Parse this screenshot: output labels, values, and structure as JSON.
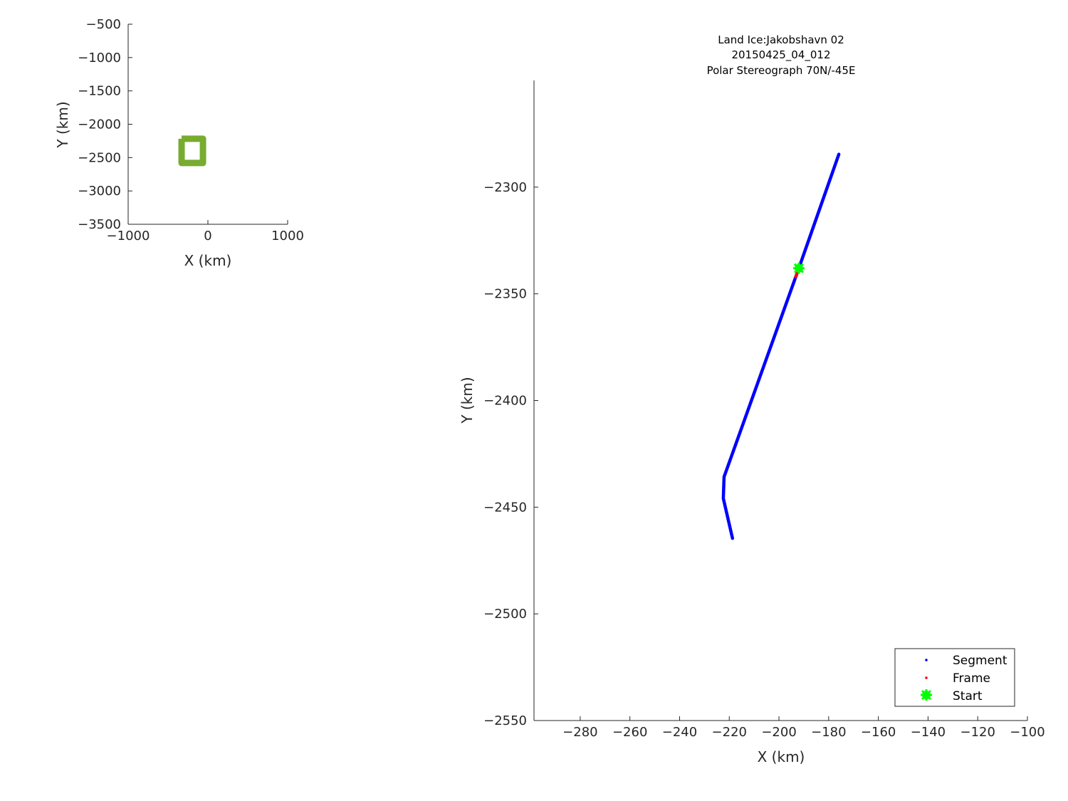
{
  "chart_data": [
    {
      "type": "scatter",
      "xlabel": "X (km)",
      "ylabel": "Y (km)",
      "xlim": [
        -1000,
        1000
      ],
      "ylim": [
        -3500,
        -500
      ],
      "xticks": [
        "-1000",
        "0",
        "1000"
      ],
      "yticks": [
        "-500",
        "-1000",
        "-1500",
        "-2000",
        "-2500",
        "-3000",
        "-3500"
      ],
      "xtick_values": [
        -1000,
        0,
        1000
      ],
      "ytick_values": [
        -500,
        -1000,
        -1500,
        -2000,
        -2500,
        -3000,
        -3500
      ],
      "grid": false,
      "series": [
        {
          "marker": "outlined box",
          "color": "#77AC30",
          "x": [
            -330,
            -62,
            -62,
            -330,
            -330
          ],
          "y": [
            -2218,
            -2218,
            -2581,
            -2581,
            -2218
          ]
        }
      ]
    },
    {
      "type": "line",
      "title": [
        "Land Ice:Jakobshavn 02",
        "20150425_04_012",
        "Polar Stereograph 70N/-45E"
      ],
      "xlabel": "X (km)",
      "ylabel": "Y (km)",
      "xlim": [
        -298.6,
        -100
      ],
      "ylim": [
        -2550,
        -2250
      ],
      "xticks": [
        "-280",
        "-260",
        "-240",
        "-220",
        "-200",
        "-180",
        "-160",
        "-140",
        "-120",
        "-100"
      ],
      "xtick_values": [
        -280,
        -260,
        -240,
        -220,
        -200,
        -180,
        -160,
        -140,
        -120,
        -100
      ],
      "yticks": [
        "-2300",
        "-2350",
        "-2400",
        "-2450",
        "-2500",
        "-2550"
      ],
      "ytick_values": [
        -2300,
        -2350,
        -2400,
        -2450,
        -2500,
        -2550
      ],
      "grid": false,
      "legend_position": "bottom-right",
      "series": [
        {
          "name": "Segment",
          "color": "#0000FF",
          "x": [
            -175.9,
            -192.0,
            -222.1,
            -222.4,
            -218.7
          ],
          "y": [
            -2284.6,
            -2338.0,
            -2435.8,
            -2445.9,
            -2464.6
          ]
        },
        {
          "name": "Frame",
          "color": "#FF0000",
          "x": [
            -192.0,
            -193.2
          ],
          "y": [
            -2338.0,
            -2342.0
          ]
        },
        {
          "name": "Start",
          "color": "#00FF00",
          "marker": "star",
          "x": [
            -192.0
          ],
          "y": [
            -2338.0
          ]
        }
      ]
    }
  ]
}
